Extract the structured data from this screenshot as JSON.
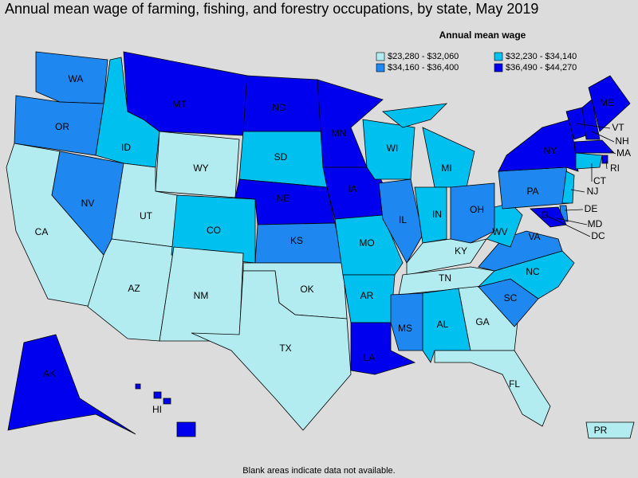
{
  "title": "Annual mean wage of farming, fishing, and forestry occupations, by state, May 2019",
  "legend": {
    "title": "Annual mean wage",
    "items": [
      {
        "label": "$23,280 - $32,060",
        "color": "#b3ecf0"
      },
      {
        "label": "$32,230 - $34,140",
        "color": "#00c0f0"
      },
      {
        "label": "$34,160 - $36,400",
        "color": "#1e88f0"
      },
      {
        "label": "$36,490 - $44,270",
        "color": "#0000ee"
      }
    ]
  },
  "states": [
    {
      "abbr": "WA",
      "bin": 2
    },
    {
      "abbr": "OR",
      "bin": 2
    },
    {
      "abbr": "CA",
      "bin": 0
    },
    {
      "abbr": "NV",
      "bin": 2
    },
    {
      "abbr": "ID",
      "bin": 1
    },
    {
      "abbr": "MT",
      "bin": 3
    },
    {
      "abbr": "WY",
      "bin": 0
    },
    {
      "abbr": "UT",
      "bin": 0
    },
    {
      "abbr": "AZ",
      "bin": 0
    },
    {
      "abbr": "CO",
      "bin": 1
    },
    {
      "abbr": "NM",
      "bin": 0
    },
    {
      "abbr": "ND",
      "bin": 3
    },
    {
      "abbr": "SD",
      "bin": 1
    },
    {
      "abbr": "NE",
      "bin": 3
    },
    {
      "abbr": "KS",
      "bin": 2
    },
    {
      "abbr": "OK",
      "bin": 0
    },
    {
      "abbr": "TX",
      "bin": 0
    },
    {
      "abbr": "MN",
      "bin": 3
    },
    {
      "abbr": "IA",
      "bin": 3
    },
    {
      "abbr": "MO",
      "bin": 1
    },
    {
      "abbr": "AR",
      "bin": 1
    },
    {
      "abbr": "LA",
      "bin": 3
    },
    {
      "abbr": "WI",
      "bin": 1
    },
    {
      "abbr": "IL",
      "bin": 2
    },
    {
      "abbr": "MI",
      "bin": 1
    },
    {
      "abbr": "IN",
      "bin": 1
    },
    {
      "abbr": "OH",
      "bin": 2
    },
    {
      "abbr": "KY",
      "bin": 0
    },
    {
      "abbr": "TN",
      "bin": 0
    },
    {
      "abbr": "MS",
      "bin": 2
    },
    {
      "abbr": "AL",
      "bin": 1
    },
    {
      "abbr": "GA",
      "bin": 0
    },
    {
      "abbr": "FL",
      "bin": 0
    },
    {
      "abbr": "SC",
      "bin": 2
    },
    {
      "abbr": "NC",
      "bin": 1
    },
    {
      "abbr": "VA",
      "bin": 2
    },
    {
      "abbr": "WV",
      "bin": 1
    },
    {
      "abbr": "PA",
      "bin": 2
    },
    {
      "abbr": "NY",
      "bin": 3
    },
    {
      "abbr": "VT",
      "bin": 3
    },
    {
      "abbr": "NH",
      "bin": 3
    },
    {
      "abbr": "ME",
      "bin": 3
    },
    {
      "abbr": "MA",
      "bin": 3
    },
    {
      "abbr": "RI",
      "bin": 3
    },
    {
      "abbr": "CT",
      "bin": 1
    },
    {
      "abbr": "NJ",
      "bin": 1
    },
    {
      "abbr": "DE",
      "bin": 2
    },
    {
      "abbr": "MD",
      "bin": 3
    },
    {
      "abbr": "DC",
      "bin": 3
    },
    {
      "abbr": "AK",
      "bin": 3
    },
    {
      "abbr": "HI",
      "bin": 3
    },
    {
      "abbr": "PR",
      "bin": 0
    }
  ],
  "footnote": "Blank areas indicate data not available."
}
